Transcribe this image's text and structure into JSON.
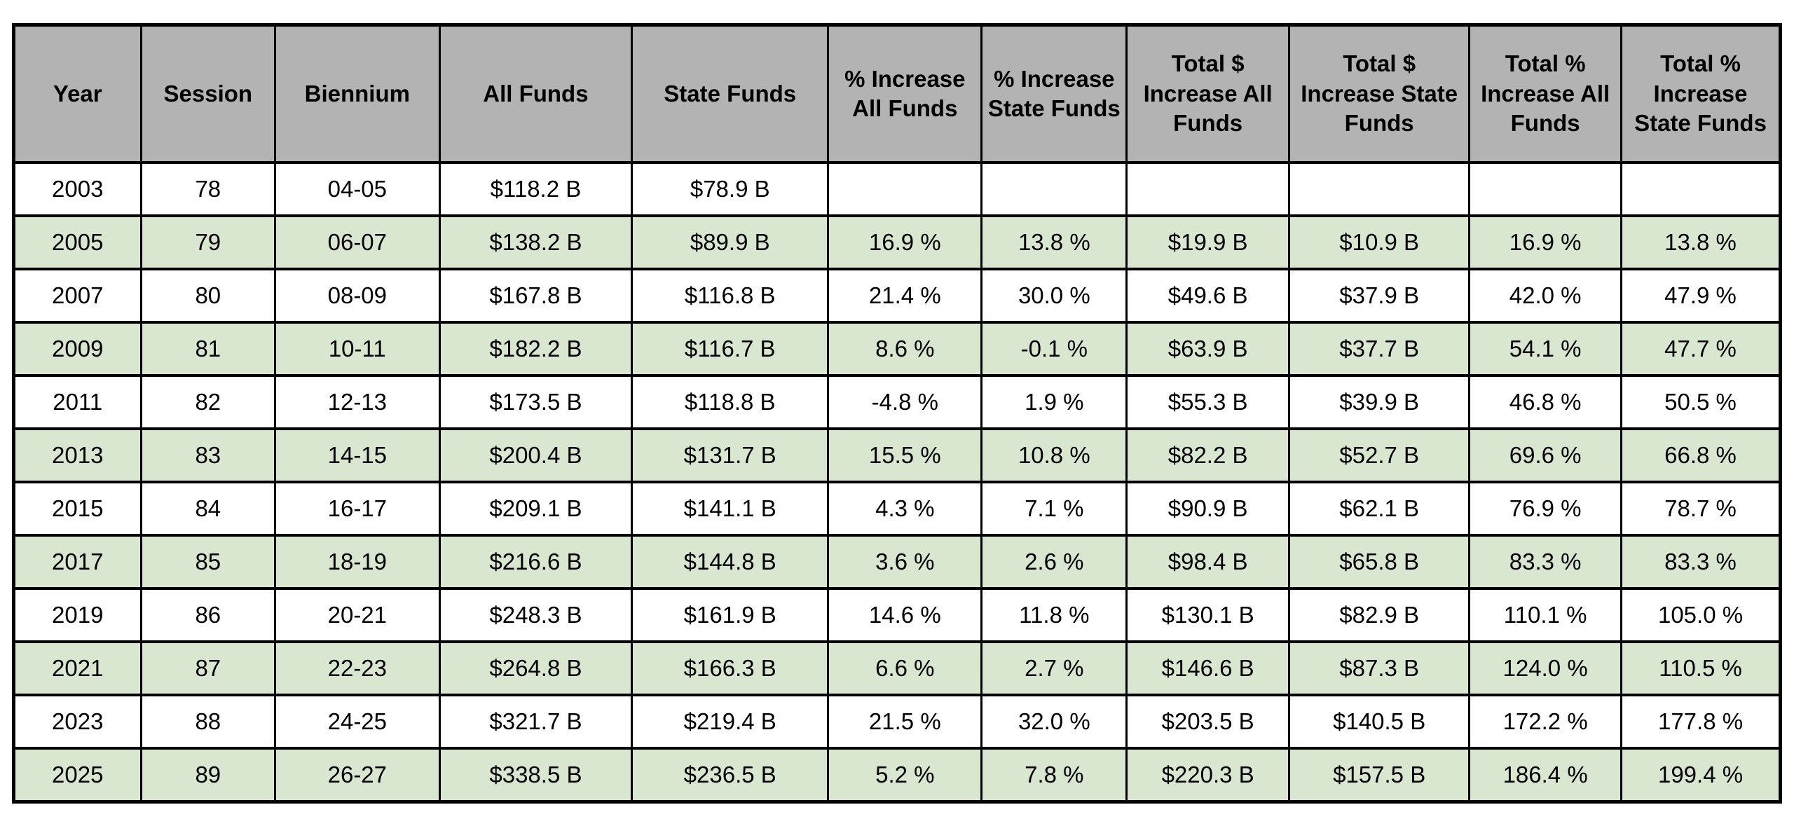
{
  "colors": {
    "header_bg": "#b3b3b3",
    "shaded_row_bg": "#d9e7d1",
    "plain_row_bg": "#ffffff",
    "border": "#000000",
    "text": "#000000"
  },
  "chart_data": {
    "type": "table",
    "columns": [
      "Year",
      "Session",
      "Biennium",
      "All Funds",
      "State Funds",
      "% Increase All Funds",
      "% Increase State Funds",
      "Total $ Increase All Funds",
      "Total $ Increase State Funds",
      "Total % Increase All Funds",
      "Total % Increase State Funds"
    ],
    "rows": [
      [
        "2003",
        "78",
        "04-05",
        "$118.2 B",
        "$78.9 B",
        "",
        "",
        "",
        "",
        "",
        ""
      ],
      [
        "2005",
        "79",
        "06-07",
        "$138.2 B",
        "$89.9 B",
        "16.9 %",
        "13.8 %",
        "$19.9 B",
        "$10.9 B",
        "16.9 %",
        "13.8 %"
      ],
      [
        "2007",
        "80",
        "08-09",
        "$167.8 B",
        "$116.8 B",
        "21.4 %",
        "30.0 %",
        "$49.6 B",
        "$37.9 B",
        "42.0 %",
        "47.9 %"
      ],
      [
        "2009",
        "81",
        "10-11",
        "$182.2 B",
        "$116.7 B",
        "8.6 %",
        "-0.1 %",
        "$63.9 B",
        "$37.7 B",
        "54.1 %",
        "47.7 %"
      ],
      [
        "2011",
        "82",
        "12-13",
        "$173.5 B",
        "$118.8 B",
        "-4.8 %",
        "1.9 %",
        "$55.3 B",
        "$39.9 B",
        "46.8 %",
        "50.5 %"
      ],
      [
        "2013",
        "83",
        "14-15",
        "$200.4 B",
        "$131.7 B",
        "15.5 %",
        "10.8 %",
        "$82.2 B",
        "$52.7 B",
        "69.6 %",
        "66.8 %"
      ],
      [
        "2015",
        "84",
        "16-17",
        "$209.1 B",
        "$141.1 B",
        "4.3 %",
        "7.1 %",
        "$90.9 B",
        "$62.1 B",
        "76.9 %",
        "78.7 %"
      ],
      [
        "2017",
        "85",
        "18-19",
        "$216.6 B",
        "$144.8 B",
        "3.6 %",
        "2.6 %",
        "$98.4 B",
        "$65.8 B",
        "83.3 %",
        "83.3 %"
      ],
      [
        "2019",
        "86",
        "20-21",
        "$248.3 B",
        "$161.9 B",
        "14.6 %",
        "11.8 %",
        "$130.1 B",
        "$82.9 B",
        "110.1 %",
        "105.0 %"
      ],
      [
        "2021",
        "87",
        "22-23",
        "$264.8 B",
        "$166.3 B",
        "6.6 %",
        "2.7 %",
        "$146.6 B",
        "$87.3 B",
        "124.0 %",
        "110.5 %"
      ],
      [
        "2023",
        "88",
        "24-25",
        "$321.7 B",
        "$219.4 B",
        "21.5 %",
        "32.0 %",
        "$203.5 B",
        "$140.5 B",
        "172.2 %",
        "177.8 %"
      ],
      [
        "2025",
        "89",
        "26-27",
        "$338.5 B",
        "$236.5 B",
        "5.2 %",
        "7.8 %",
        "$220.3 B",
        "$157.5 B",
        "186.4 %",
        "199.4 %"
      ]
    ],
    "column_width_percents": [
      7.2,
      7.6,
      9.3,
      10.9,
      11.1,
      8.7,
      8.2,
      9.2,
      10.2,
      8.6,
      9.0
    ],
    "shading": "alternate rows shaded green starting with second data row (2005)"
  }
}
